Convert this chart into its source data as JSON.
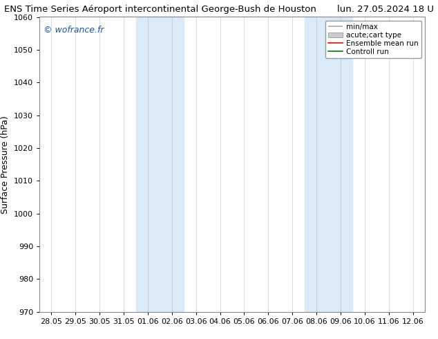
{
  "title_left": "ENS Time Series Aéroport intercontinental George-Bush de Houston",
  "title_right": "lun. 27.05.2024 18 U",
  "ylabel": "Surface Pressure (hPa)",
  "ylim": [
    970,
    1060
  ],
  "yticks": [
    970,
    980,
    990,
    1000,
    1010,
    1020,
    1030,
    1040,
    1050,
    1060
  ],
  "watermark": "© wofrance.fr",
  "x_labels": [
    "28.05",
    "29.05",
    "30.05",
    "31.05",
    "01.06",
    "02.06",
    "03.06",
    "04.06",
    "05.06",
    "06.06",
    "07.06",
    "08.06",
    "09.06",
    "10.06",
    "11.06",
    "12.06"
  ],
  "shaded_ranges": [
    [
      4,
      6
    ],
    [
      11,
      13
    ]
  ],
  "legend_entries": [
    "min/max",
    "acute;cart type",
    "Ensemble mean run",
    "Controll run"
  ],
  "background_color": "#ffffff",
  "shade_color": "#daeaf7",
  "title_fontsize": 9.5,
  "ylabel_fontsize": 9,
  "tick_fontsize": 8,
  "legend_fontsize": 7.5,
  "watermark_fontsize": 9,
  "spine_color": "#888888",
  "grid_color": "#cccccc"
}
